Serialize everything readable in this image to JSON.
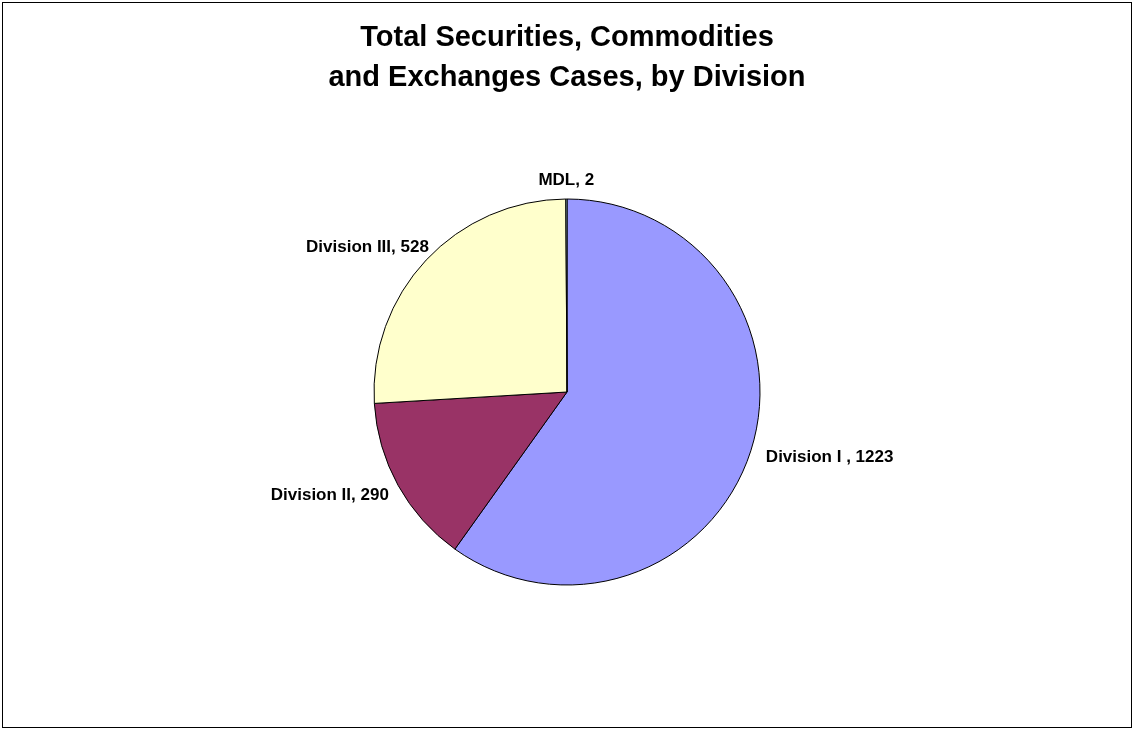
{
  "chart_data": {
    "type": "pie",
    "title": [
      "Total Securities, Commodities",
      "and Exchanges Cases, by Division"
    ],
    "categories": [
      "Division  I",
      "Division II",
      "Division III",
      "MDL"
    ],
    "values": [
      1223,
      290,
      528,
      2
    ],
    "colors": [
      "#9999ff",
      "#993366",
      "#ffffcc",
      "#ccffff"
    ],
    "value_labels": [
      ", 1223",
      ", 290",
      ", 528",
      ", 2"
    ],
    "legend": false
  }
}
